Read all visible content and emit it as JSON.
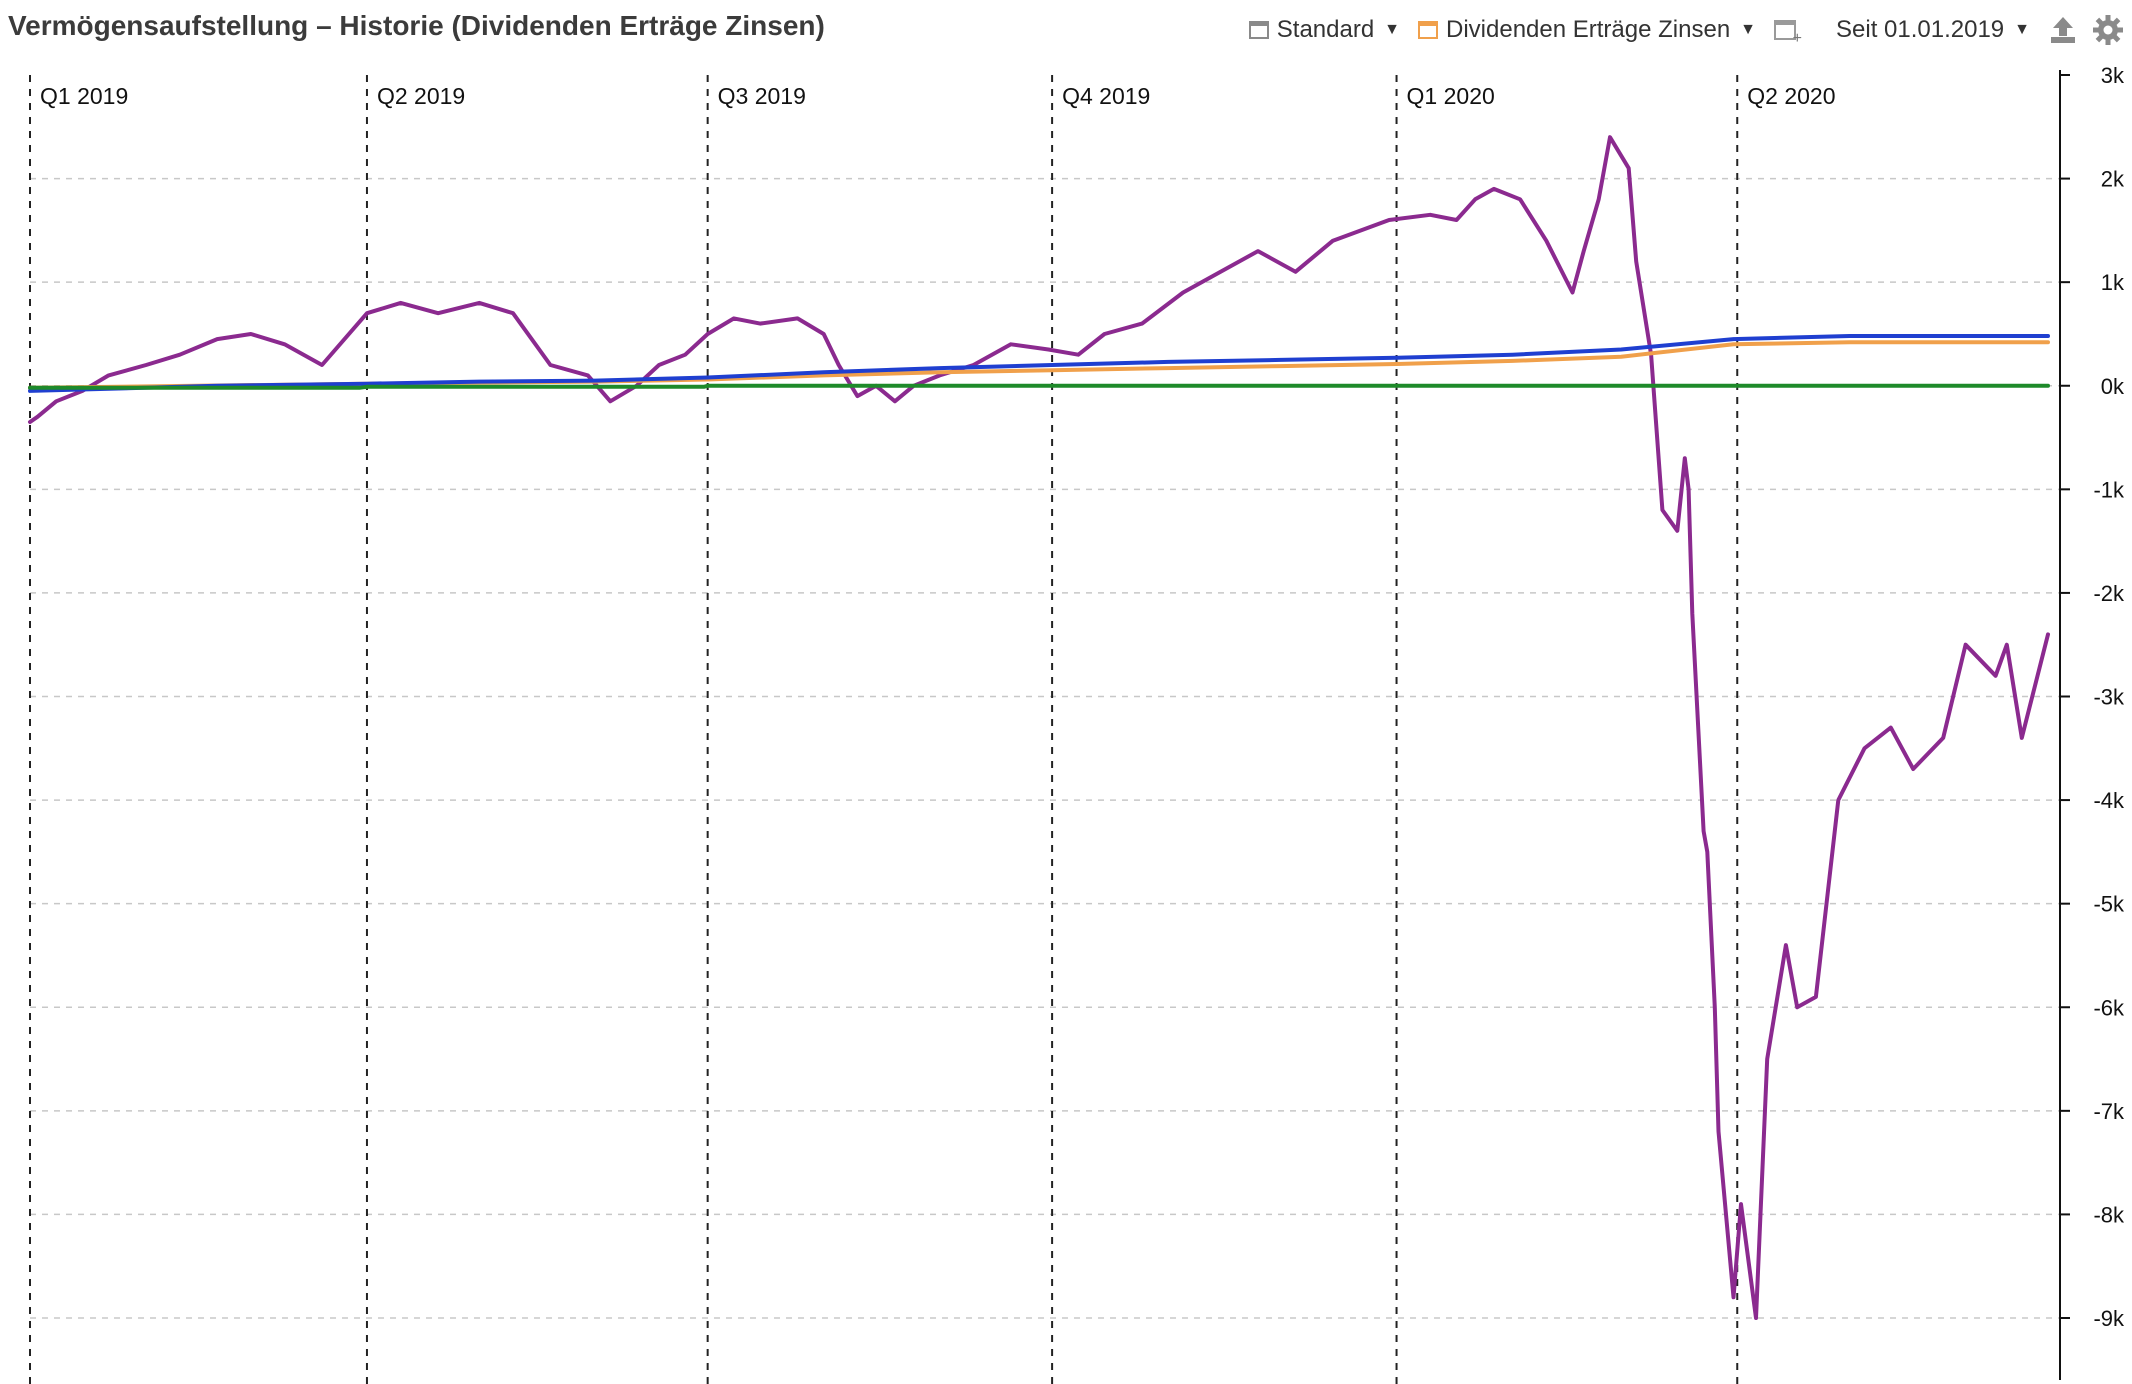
{
  "header": {
    "title": "Vermögensaufstellung – Historie (Dividenden Erträge Zinsen)",
    "view_label": "Standard",
    "series_label": "Dividenden Erträge Zinsen",
    "range_label": "Seit 01.01.2019",
    "icons": {
      "view": "window-icon",
      "series": "orange-window-icon",
      "new": "new-window-icon",
      "export": "export-icon",
      "settings": "gear-icon"
    }
  },
  "chart_data": {
    "type": "line",
    "x_start": "2019-01-01",
    "x_end": "2020-06-23",
    "quarter_labels": [
      {
        "label": "Q1 2019",
        "date": "2019-01-01"
      },
      {
        "label": "Q2 2019",
        "date": "2019-04-01"
      },
      {
        "label": "Q3 2019",
        "date": "2019-07-01"
      },
      {
        "label": "Q4 2019",
        "date": "2019-10-01"
      },
      {
        "label": "Q1 2020",
        "date": "2020-01-01"
      },
      {
        "label": "Q2 2020",
        "date": "2020-04-01"
      }
    ],
    "ylim": [
      -9000,
      3000
    ],
    "yticks": [
      3000,
      2000,
      1000,
      0,
      -1000,
      -2000,
      -3000,
      -4000,
      -5000,
      -6000,
      -7000,
      -8000,
      -9000
    ],
    "ytick_labels": [
      "3k",
      "2k",
      "1k",
      "0k",
      "-1k",
      "-2k",
      "-3k",
      "-4k",
      "-5k",
      "-6k",
      "-7k",
      "-8k",
      "-9k"
    ],
    "grid": true,
    "colors": {
      "purple": "#8b2a8f",
      "blue": "#1f3fd0",
      "orange": "#f0a04b",
      "green": "#1e8a2a"
    },
    "series": [
      {
        "color": "#8b2a8f",
        "x": [
          "2019-01-01",
          "2019-01-03",
          "2019-01-08",
          "2019-01-15",
          "2019-01-22",
          "2019-02-01",
          "2019-02-10",
          "2019-02-20",
          "2019-03-01",
          "2019-03-10",
          "2019-03-20",
          "2019-04-01",
          "2019-04-10",
          "2019-04-20",
          "2019-05-01",
          "2019-05-10",
          "2019-05-20",
          "2019-05-30",
          "2019-06-05",
          "2019-06-12",
          "2019-06-18",
          "2019-06-25",
          "2019-07-01",
          "2019-07-08",
          "2019-07-15",
          "2019-07-25",
          "2019-08-01",
          "2019-08-05",
          "2019-08-10",
          "2019-08-15",
          "2019-08-20",
          "2019-08-25",
          "2019-09-01",
          "2019-09-10",
          "2019-09-20",
          "2019-09-30",
          "2019-10-08",
          "2019-10-15",
          "2019-10-25",
          "2019-11-05",
          "2019-11-15",
          "2019-11-25",
          "2019-12-05",
          "2019-12-15",
          "2019-12-30",
          "2020-01-10",
          "2020-01-17",
          "2020-01-22",
          "2020-01-27",
          "2020-02-03",
          "2020-02-10",
          "2020-02-17",
          "2020-02-20",
          "2020-02-24",
          "2020-02-27",
          "2020-03-03",
          "2020-03-05",
          "2020-03-09",
          "2020-03-12",
          "2020-03-16",
          "2020-03-18",
          "2020-03-19",
          "2020-03-20",
          "2020-03-23",
          "2020-03-24",
          "2020-03-26",
          "2020-03-27",
          "2020-03-31",
          "2020-04-02",
          "2020-04-06",
          "2020-04-09",
          "2020-04-14",
          "2020-04-17",
          "2020-04-22",
          "2020-04-28",
          "2020-05-05",
          "2020-05-12",
          "2020-05-18",
          "2020-05-26",
          "2020-06-01",
          "2020-06-09",
          "2020-06-12",
          "2020-06-16",
          "2020-06-23"
        ],
        "y": [
          -350,
          -300,
          -150,
          -50,
          100,
          200,
          300,
          450,
          500,
          400,
          200,
          700,
          800,
          700,
          800,
          700,
          200,
          100,
          -150,
          0,
          200,
          300,
          500,
          650,
          600,
          650,
          500,
          200,
          -100,
          0,
          -150,
          0,
          100,
          200,
          400,
          350,
          300,
          500,
          600,
          900,
          1100,
          1300,
          1100,
          1400,
          1600,
          1650,
          1600,
          1800,
          1900,
          1800,
          1400,
          900,
          1300,
          1800,
          2400,
          2100,
          1200,
          300,
          -1200,
          -1400,
          -700,
          -1000,
          -2200,
          -4300,
          -4500,
          -6000,
          -7200,
          -8800,
          -7900,
          -9000,
          -6500,
          -5400,
          -6000,
          -5900,
          -4000,
          -3500,
          -3300,
          -3700,
          -3400,
          -2500,
          -2800,
          -2500,
          -3400,
          -2400
        ]
      },
      {
        "color": "#1f3fd0",
        "x": [
          "2019-01-01",
          "2019-02-20",
          "2019-04-01",
          "2019-05-01",
          "2019-06-01",
          "2019-07-01",
          "2019-08-01",
          "2019-09-01",
          "2019-10-01",
          "2019-11-01",
          "2019-12-01",
          "2020-01-01",
          "2020-02-01",
          "2020-03-01",
          "2020-03-31",
          "2020-05-01",
          "2020-06-23"
        ],
        "y": [
          -50,
          0,
          20,
          40,
          50,
          80,
          130,
          170,
          200,
          230,
          250,
          270,
          300,
          350,
          450,
          480,
          480
        ]
      },
      {
        "color": "#f0a04b",
        "x": [
          "2019-01-01",
          "2019-04-01",
          "2019-05-01",
          "2019-06-01",
          "2019-07-01",
          "2019-08-01",
          "2019-09-01",
          "2019-10-01",
          "2019-11-01",
          "2019-12-01",
          "2020-01-01",
          "2020-02-01",
          "2020-03-01",
          "2020-03-31",
          "2020-05-01",
          "2020-06-23"
        ],
        "y": [
          -20,
          20,
          30,
          40,
          60,
          100,
          130,
          150,
          170,
          190,
          210,
          240,
          280,
          400,
          420,
          420
        ]
      },
      {
        "color": "#1e8a2a",
        "x": [
          "2019-01-01",
          "2019-03-30",
          "2019-04-01",
          "2019-06-30",
          "2019-07-01",
          "2020-06-23"
        ],
        "y": [
          -20,
          -20,
          -10,
          -10,
          0,
          0
        ]
      }
    ]
  }
}
